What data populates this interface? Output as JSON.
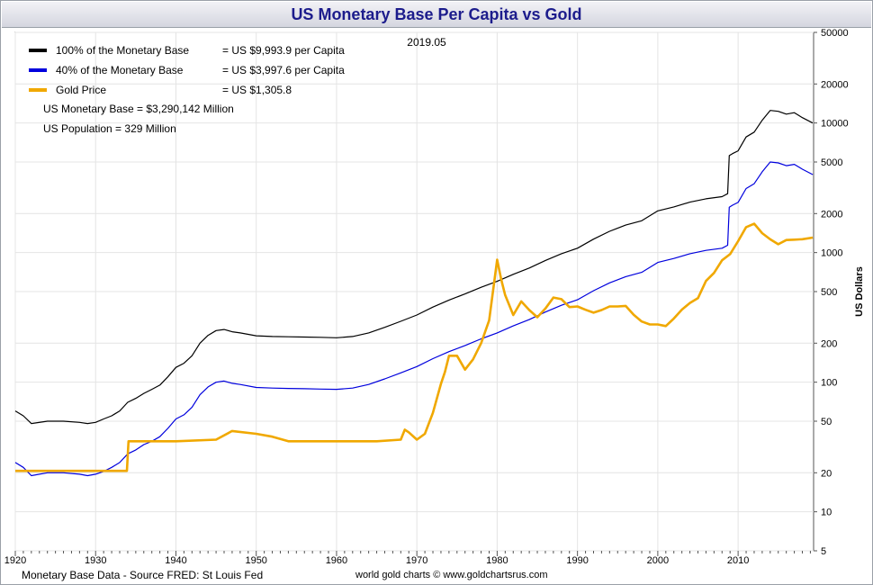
{
  "chart_data": {
    "type": "line",
    "title": "US Monetary Base Per Capita vs Gold",
    "ylabel": "US Dollars",
    "xlabel": "",
    "y_scale": "log",
    "ylim": [
      5,
      50000
    ],
    "xlim": [
      1920,
      2019.4
    ],
    "x_ticks": [
      1920,
      1930,
      1940,
      1950,
      1960,
      1970,
      1980,
      1990,
      2000,
      2010
    ],
    "y_ticks": [
      5,
      10,
      20,
      50,
      100,
      200,
      500,
      1000,
      2000,
      5000,
      10000,
      20000,
      50000
    ],
    "grid": true,
    "legend_position": "top-left",
    "date_label": "2019.05",
    "legend": [
      {
        "label": "100% of the Monetary Base",
        "value": "= US $9,993.9 per Capita",
        "color": "#000000"
      },
      {
        "label": "40% of the Monetary Base",
        "value": "= US $3,997.6 per Capita",
        "color": "#0000dd"
      },
      {
        "label": "Gold Price",
        "value": "= US $1,305.8",
        "color": "#f0a800"
      }
    ],
    "notes": [
      "US Monetary Base = $3,290,142 Million",
      "US Population = 329 Million"
    ],
    "series": [
      {
        "key": "base100",
        "color": "#000000",
        "points": [
          [
            1920,
            60
          ],
          [
            1921,
            55
          ],
          [
            1922,
            48
          ],
          [
            1924,
            50
          ],
          [
            1926,
            50
          ],
          [
            1928,
            49
          ],
          [
            1929,
            48
          ],
          [
            1930,
            49
          ],
          [
            1931,
            52
          ],
          [
            1932,
            55
          ],
          [
            1933,
            60
          ],
          [
            1934,
            70
          ],
          [
            1935,
            75
          ],
          [
            1936,
            82
          ],
          [
            1937,
            88
          ],
          [
            1938,
            95
          ],
          [
            1939,
            110
          ],
          [
            1940,
            130
          ],
          [
            1941,
            140
          ],
          [
            1942,
            160
          ],
          [
            1943,
            200
          ],
          [
            1944,
            230
          ],
          [
            1945,
            250
          ],
          [
            1946,
            255
          ],
          [
            1947,
            245
          ],
          [
            1948,
            240
          ],
          [
            1950,
            228
          ],
          [
            1952,
            225
          ],
          [
            1954,
            224
          ],
          [
            1956,
            223
          ],
          [
            1958,
            222
          ],
          [
            1960,
            220
          ],
          [
            1962,
            225
          ],
          [
            1964,
            240
          ],
          [
            1966,
            265
          ],
          [
            1968,
            295
          ],
          [
            1970,
            330
          ],
          [
            1972,
            380
          ],
          [
            1974,
            430
          ],
          [
            1976,
            480
          ],
          [
            1978,
            540
          ],
          [
            1980,
            600
          ],
          [
            1982,
            680
          ],
          [
            1984,
            760
          ],
          [
            1986,
            870
          ],
          [
            1988,
            980
          ],
          [
            1990,
            1080
          ],
          [
            1992,
            1270
          ],
          [
            1994,
            1460
          ],
          [
            1996,
            1630
          ],
          [
            1998,
            1760
          ],
          [
            2000,
            2100
          ],
          [
            2002,
            2250
          ],
          [
            2004,
            2450
          ],
          [
            2006,
            2600
          ],
          [
            2008,
            2700
          ],
          [
            2008.7,
            2850
          ],
          [
            2008.9,
            5600
          ],
          [
            2009.3,
            5800
          ],
          [
            2010,
            6100
          ],
          [
            2011,
            7800
          ],
          [
            2012,
            8500
          ],
          [
            2013,
            10500
          ],
          [
            2014,
            12500
          ],
          [
            2015,
            12300
          ],
          [
            2016,
            11700
          ],
          [
            2017,
            12000
          ],
          [
            2018,
            11000
          ],
          [
            2019.3,
            10000
          ]
        ]
      },
      {
        "key": "base40",
        "color": "#0000dd",
        "points": [
          [
            1920,
            24
          ],
          [
            1921,
            22
          ],
          [
            1922,
            19
          ],
          [
            1924,
            20
          ],
          [
            1926,
            20
          ],
          [
            1928,
            19.5
          ],
          [
            1929,
            19
          ],
          [
            1930,
            19.5
          ],
          [
            1931,
            20.5
          ],
          [
            1932,
            22
          ],
          [
            1933,
            24
          ],
          [
            1934,
            28
          ],
          [
            1935,
            30
          ],
          [
            1936,
            33
          ],
          [
            1937,
            35
          ],
          [
            1938,
            38
          ],
          [
            1939,
            44
          ],
          [
            1940,
            52
          ],
          [
            1941,
            56
          ],
          [
            1942,
            64
          ],
          [
            1943,
            80
          ],
          [
            1944,
            92
          ],
          [
            1945,
            100
          ],
          [
            1946,
            102
          ],
          [
            1947,
            98
          ],
          [
            1948,
            96
          ],
          [
            1950,
            91
          ],
          [
            1952,
            90
          ],
          [
            1954,
            89.5
          ],
          [
            1956,
            89
          ],
          [
            1958,
            88.5
          ],
          [
            1960,
            88
          ],
          [
            1962,
            90
          ],
          [
            1964,
            96
          ],
          [
            1966,
            106
          ],
          [
            1968,
            118
          ],
          [
            1970,
            132
          ],
          [
            1972,
            152
          ],
          [
            1974,
            172
          ],
          [
            1976,
            192
          ],
          [
            1978,
            216
          ],
          [
            1980,
            240
          ],
          [
            1982,
            272
          ],
          [
            1984,
            304
          ],
          [
            1986,
            348
          ],
          [
            1988,
            392
          ],
          [
            1990,
            432
          ],
          [
            1992,
            508
          ],
          [
            1994,
            584
          ],
          [
            1996,
            652
          ],
          [
            1998,
            704
          ],
          [
            2000,
            840
          ],
          [
            2002,
            900
          ],
          [
            2004,
            980
          ],
          [
            2006,
            1040
          ],
          [
            2008,
            1080
          ],
          [
            2008.7,
            1140
          ],
          [
            2008.9,
            2240
          ],
          [
            2009.3,
            2320
          ],
          [
            2010,
            2440
          ],
          [
            2011,
            3120
          ],
          [
            2012,
            3400
          ],
          [
            2013,
            4200
          ],
          [
            2014,
            5000
          ],
          [
            2015,
            4920
          ],
          [
            2016,
            4680
          ],
          [
            2017,
            4800
          ],
          [
            2018,
            4400
          ],
          [
            2019.3,
            4000
          ]
        ]
      },
      {
        "key": "gold",
        "color": "#f0a800",
        "points": [
          [
            1920,
            20.67
          ],
          [
            1933.9,
            20.67
          ],
          [
            1934.1,
            35
          ],
          [
            1940,
            35
          ],
          [
            1945,
            36
          ],
          [
            1947,
            42
          ],
          [
            1950,
            40
          ],
          [
            1952,
            38
          ],
          [
            1954,
            35
          ],
          [
            1960,
            35
          ],
          [
            1965,
            35
          ],
          [
            1968,
            36
          ],
          [
            1968.5,
            43
          ],
          [
            1969,
            41
          ],
          [
            1970,
            36
          ],
          [
            1971,
            40
          ],
          [
            1972,
            58
          ],
          [
            1973,
            97
          ],
          [
            1973.5,
            120
          ],
          [
            1974,
            160
          ],
          [
            1975,
            160
          ],
          [
            1976,
            125
          ],
          [
            1977,
            150
          ],
          [
            1978,
            200
          ],
          [
            1979,
            300
          ],
          [
            1980,
            880
          ],
          [
            1980.5,
            620
          ],
          [
            1981,
            470
          ],
          [
            1982,
            330
          ],
          [
            1983,
            420
          ],
          [
            1984,
            360
          ],
          [
            1985,
            317
          ],
          [
            1986,
            370
          ],
          [
            1987,
            450
          ],
          [
            1988,
            437
          ],
          [
            1989,
            380
          ],
          [
            1990,
            384
          ],
          [
            1991,
            362
          ],
          [
            1992,
            344
          ],
          [
            1993,
            360
          ],
          [
            1994,
            384
          ],
          [
            1995,
            384
          ],
          [
            1996,
            388
          ],
          [
            1997,
            331
          ],
          [
            1998,
            294
          ],
          [
            1999,
            279
          ],
          [
            2000,
            279
          ],
          [
            2001,
            271
          ],
          [
            2002,
            310
          ],
          [
            2003,
            363
          ],
          [
            2004,
            409
          ],
          [
            2005,
            445
          ],
          [
            2006,
            604
          ],
          [
            2007,
            696
          ],
          [
            2008,
            872
          ],
          [
            2009,
            972
          ],
          [
            2010,
            1225
          ],
          [
            2011,
            1572
          ],
          [
            2012,
            1669
          ],
          [
            2013,
            1411
          ],
          [
            2014,
            1266
          ],
          [
            2015,
            1160
          ],
          [
            2016,
            1250
          ],
          [
            2017,
            1257
          ],
          [
            2018,
            1268
          ],
          [
            2019.3,
            1306
          ]
        ]
      }
    ]
  },
  "footer": {
    "source": "Monetary Base Data - Source FRED: St Louis Fed",
    "credit": "world gold charts © www.goldchartsrus.com"
  }
}
